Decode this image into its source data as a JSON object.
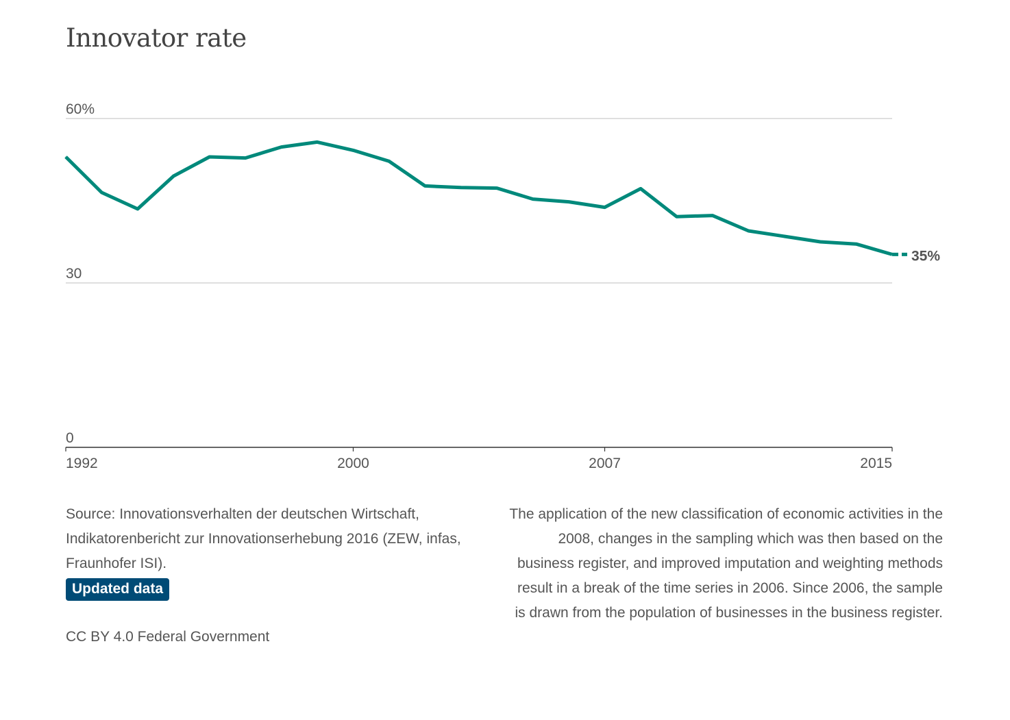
{
  "title": "Innovator rate",
  "chart_data": {
    "type": "line",
    "title": "Innovator rate",
    "xlabel": "",
    "ylabel": "",
    "xlim": [
      1992,
      2015
    ],
    "ylim": [
      0,
      60
    ],
    "y_ticks": [
      {
        "value": 60,
        "label": "60%"
      },
      {
        "value": 30,
        "label": "30"
      },
      {
        "value": 0,
        "label": "0"
      }
    ],
    "x_ticks": [
      {
        "value": 1992,
        "label": "1992"
      },
      {
        "value": 2000,
        "label": "2000"
      },
      {
        "value": 2007,
        "label": "2007"
      },
      {
        "value": 2015,
        "label": "2015"
      }
    ],
    "grid": true,
    "series": [
      {
        "color": "#00897b",
        "x": [
          1992,
          1993,
          1994,
          1995,
          1996,
          1997,
          1998,
          1999,
          2000,
          2001,
          2002,
          2003,
          2004,
          2005,
          2006,
          2007,
          2008,
          2009,
          2010,
          2011,
          2012,
          2013,
          2014,
          2015
        ],
        "values": [
          53,
          46.5,
          43.5,
          49.5,
          53,
          52.8,
          54.8,
          55.7,
          54.2,
          52.2,
          47.7,
          47.4,
          47.3,
          45.3,
          44.8,
          43.8,
          47.2,
          42.1,
          42.3,
          39.5,
          38.5,
          37.5,
          37.1,
          35.2
        ]
      }
    ],
    "end_label": "35%",
    "dashed_from": 2015
  },
  "source": {
    "text": "Source: Innovationsverhalten der deutschen Wirtschaft, Indikatorenbericht zur Innovationserhebung 2016 (ZEW, infas, Fraunhofer ISI).",
    "badge": "Updated data"
  },
  "license": "CC BY 4.0 Federal Government",
  "note": "The application of the new classification of economic activities in the 2008, changes in the sampling which was then based on the business register, and improved imputation and weighting methods result in a break of the time series in 2006. Since 2006, the sample is drawn from the population of businesses in the business register."
}
